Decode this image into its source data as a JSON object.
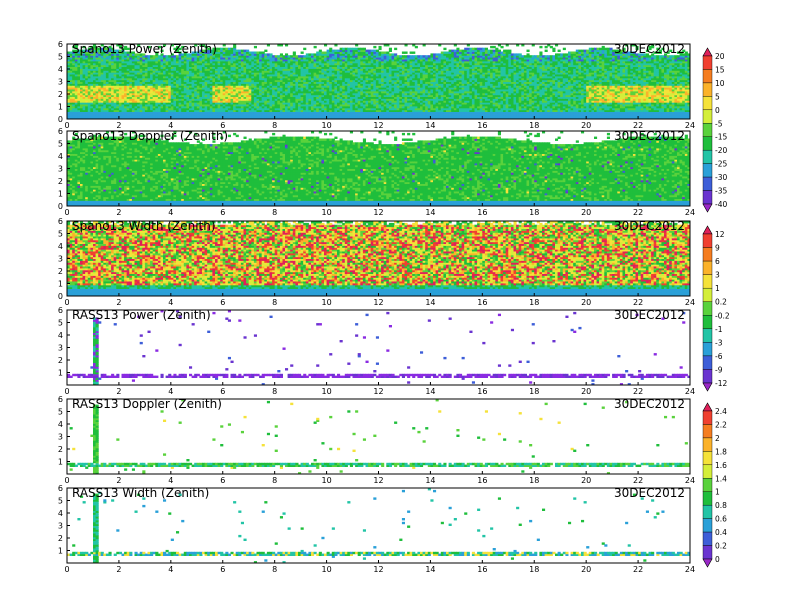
{
  "chart_data": [
    {
      "type": "heatmap",
      "title": "Spano13 Power (Zenith)",
      "date": "30DEC2012",
      "x": {
        "range": [
          0,
          24
        ],
        "ticks": [
          0,
          2,
          4,
          6,
          8,
          10,
          12,
          14,
          16,
          18,
          20,
          22,
          24
        ]
      },
      "y": {
        "range": [
          0,
          6
        ],
        "ticks": [
          0,
          1,
          2,
          3,
          4,
          5,
          6
        ]
      },
      "colorbar": "cb1",
      "scheme": "spano_power"
    },
    {
      "type": "heatmap",
      "title": "Spano13 Doppler (Zenith)",
      "date": "30DEC2012",
      "x": {
        "range": [
          0,
          24
        ],
        "ticks": [
          0,
          2,
          4,
          6,
          8,
          10,
          12,
          14,
          16,
          18,
          20,
          22,
          24
        ]
      },
      "y": {
        "range": [
          0,
          6
        ],
        "ticks": [
          0,
          1,
          2,
          3,
          4,
          5,
          6
        ]
      },
      "colorbar": "cb1",
      "scheme": "spano_doppler"
    },
    {
      "type": "heatmap",
      "title": "Spano13 Width (Zenith)",
      "date": "30DEC2012",
      "x": {
        "range": [
          0,
          24
        ],
        "ticks": [
          0,
          2,
          4,
          6,
          8,
          10,
          12,
          14,
          16,
          18,
          20,
          22,
          24
        ]
      },
      "y": {
        "range": [
          0,
          6
        ],
        "ticks": [
          0,
          1,
          2,
          3,
          4,
          5,
          6
        ]
      },
      "colorbar": "cb2",
      "scheme": "spano_width"
    },
    {
      "type": "heatmap",
      "title": "RASS13 Power (Zenith)",
      "date": "30DEC2012",
      "x": {
        "range": [
          0,
          24
        ],
        "ticks": [
          0,
          2,
          4,
          6,
          8,
          10,
          12,
          14,
          16,
          18,
          20,
          22,
          24
        ]
      },
      "y": {
        "range": [
          0,
          6
        ],
        "ticks": [
          1,
          2,
          3,
          4,
          5,
          6
        ]
      },
      "colorbar": "cb2",
      "scheme": "rass_power"
    },
    {
      "type": "heatmap",
      "title": "RASS13 Doppler (Zenith)",
      "date": "30DEC2012",
      "x": {
        "range": [
          0,
          24
        ],
        "ticks": [
          0,
          2,
          4,
          6,
          8,
          10,
          12,
          14,
          16,
          18,
          20,
          22,
          24
        ]
      },
      "y": {
        "range": [
          0,
          6
        ],
        "ticks": [
          1,
          2,
          3,
          4,
          5,
          6
        ]
      },
      "colorbar": "cb3",
      "scheme": "rass_doppler"
    },
    {
      "type": "heatmap",
      "title": "RASS13 Width (Zenith)",
      "date": "30DEC2012",
      "x": {
        "range": [
          0,
          24
        ],
        "ticks": [
          0,
          2,
          4,
          6,
          8,
          10,
          12,
          14,
          16,
          18,
          20,
          22,
          24
        ]
      },
      "y": {
        "range": [
          0,
          6
        ],
        "ticks": [
          1,
          2,
          3,
          4,
          5,
          6
        ]
      },
      "colorbar": "cb3",
      "scheme": "rass_width"
    }
  ],
  "colorbars": {
    "cb1": {
      "labels": [
        "20",
        "15",
        "10",
        "5",
        "0",
        "-5",
        "-15",
        "-20",
        "-25",
        "-30",
        "-35",
        "-40"
      ],
      "colors": [
        "#e0205a",
        "#f04030",
        "#f57d20",
        "#fbb22a",
        "#f5e23a",
        "#d4ee3a",
        "#5ad23c",
        "#1fbe3c",
        "#22c4a6",
        "#2aa0d8",
        "#3d5ed8",
        "#6a34d0",
        "#9a28c8"
      ]
    },
    "cb2": {
      "labels": [
        "12",
        "9",
        "6",
        "3",
        "1",
        "0.2",
        "-0.2",
        "-1",
        "-3",
        "-6",
        "-9",
        "-12"
      ],
      "colors": [
        "#e0205a",
        "#f04030",
        "#f57d20",
        "#fbb22a",
        "#f5e23a",
        "#d4ee3a",
        "#5ad23c",
        "#1fbe3c",
        "#22c4a6",
        "#2aa0d8",
        "#3d5ed8",
        "#6a34d0",
        "#9a28c8"
      ]
    },
    "cb3": {
      "labels": [
        "2.4",
        "2.2",
        "2",
        "1.8",
        "1.6",
        "1.4",
        "1",
        "0.8",
        "0.6",
        "0.4",
        "0.2",
        "0"
      ],
      "colors": [
        "#e0205a",
        "#f04030",
        "#f57d20",
        "#fbb22a",
        "#f5e23a",
        "#d4ee3a",
        "#5ad23c",
        "#1fbe3c",
        "#22c4a6",
        "#2aa0d8",
        "#3d5ed8",
        "#6a34d0",
        "#9a28c8"
      ]
    }
  }
}
